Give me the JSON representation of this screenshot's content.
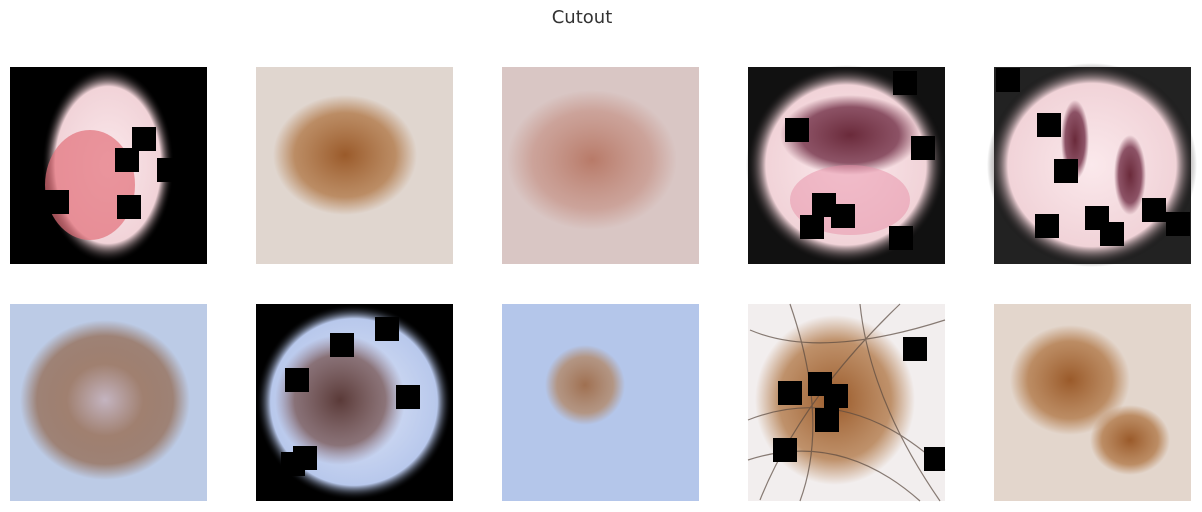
{
  "title": "Cutout"
}
